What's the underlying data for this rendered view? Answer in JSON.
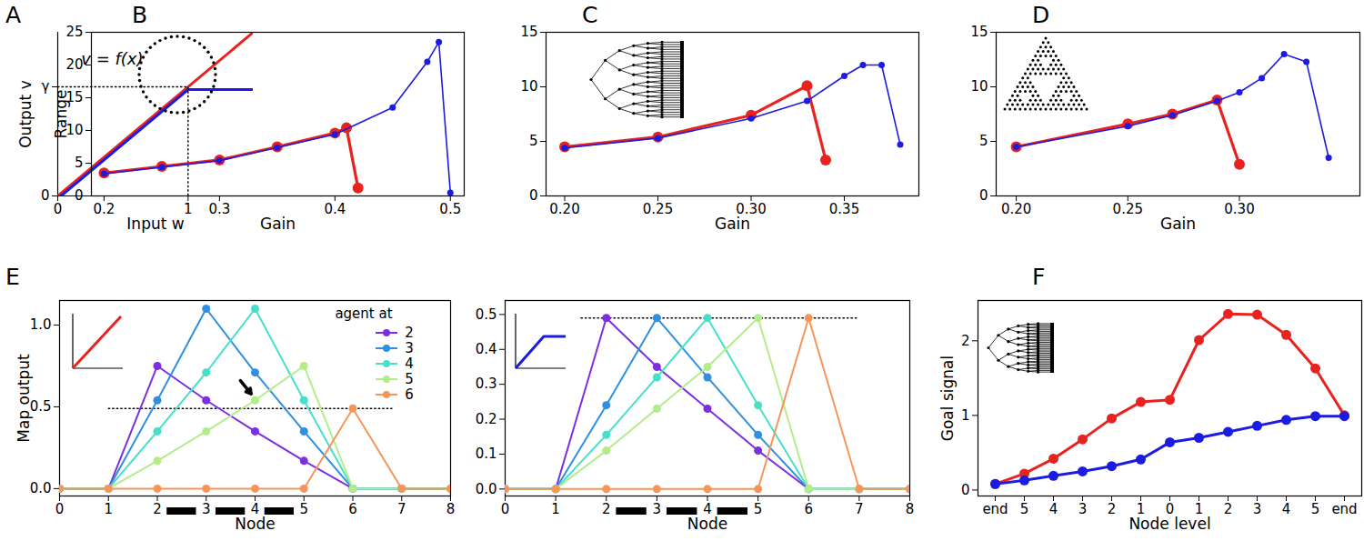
{
  "chart_data": [
    {
      "title": "A",
      "type": "line",
      "x_label": "Input w",
      "y_label": "Output v",
      "xlim": [
        0,
        1.5
      ],
      "ylim": [
        0,
        1.5
      ],
      "xticks": [
        0,
        1
      ],
      "yticks": [
        0,
        {
          "value": 1,
          "label": "γ"
        }
      ],
      "series": [
        {
          "color": "#e8231f",
          "line_style": "solid",
          "x": [
            0,
            1.5
          ],
          "values": [
            0,
            1.5
          ]
        },
        {
          "color": "#1c1ce0",
          "line_style": "solid",
          "x": [
            0,
            1,
            1.5
          ],
          "values": [
            0,
            1,
            1
          ]
        },
        {
          "color": "#000000",
          "line_style": "dotted",
          "x": [
            0,
            1,
            1
          ],
          "values": [
            1,
            1,
            0
          ]
        }
      ],
      "annotations": [
        {
          "text": "v = f(x)",
          "x": 0.18,
          "y": 1.25
        }
      ]
    },
    {
      "title": "B",
      "type": "line",
      "x_label": "Gain",
      "y_label": "Range",
      "xlim": [
        0.189,
        0.512
      ],
      "ylim": [
        0,
        25
      ],
      "xticks": [
        0.2,
        0.3,
        0.4,
        0.5
      ],
      "yticks": [
        0,
        5,
        10,
        15,
        20,
        25
      ],
      "series": [
        {
          "color": "#e8231f",
          "marker": "circle",
          "line_style": "solid",
          "x": [
            0.2,
            0.25,
            0.3,
            0.35,
            0.4,
            0.41,
            0.42
          ],
          "values": [
            3.5,
            4.5,
            5.5,
            7.5,
            9.6,
            10.4,
            1.2
          ]
        },
        {
          "color": "#1c1ce0",
          "marker": "circle",
          "line_style": "solid",
          "x": [
            0.2,
            0.25,
            0.3,
            0.35,
            0.4,
            0.45,
            0.48,
            0.49,
            0.5
          ],
          "values": [
            3.4,
            4.4,
            5.4,
            7.4,
            9.4,
            13.5,
            20.5,
            23.5,
            0.5
          ]
        }
      ]
    },
    {
      "title": "C",
      "type": "line",
      "x_label": "Gain",
      "xlim": [
        0.19,
        0.39
      ],
      "ylim": [
        0,
        15
      ],
      "xticks": [
        {
          "value": 0.2,
          "label": "0.20"
        },
        {
          "value": 0.25,
          "label": "0.25"
        },
        {
          "value": 0.3,
          "label": "0.30"
        },
        {
          "value": 0.35,
          "label": "0.35"
        }
      ],
      "yticks": [
        0,
        5,
        10,
        15
      ],
      "series": [
        {
          "color": "#e8231f",
          "marker": "circle",
          "line_style": "solid",
          "x": [
            0.2,
            0.25,
            0.3,
            0.33,
            0.34
          ],
          "values": [
            4.5,
            5.4,
            7.4,
            10.1,
            3.3
          ]
        },
        {
          "color": "#1c1ce0",
          "marker": "circle",
          "line_style": "solid",
          "x": [
            0.2,
            0.25,
            0.3,
            0.33,
            0.35,
            0.36,
            0.37,
            0.38
          ],
          "values": [
            4.4,
            5.3,
            7.1,
            8.7,
            11.0,
            12.0,
            12.0,
            4.7
          ]
        }
      ]
    },
    {
      "title": "D",
      "type": "line",
      "x_label": "Gain",
      "xlim": [
        0.191,
        0.354
      ],
      "ylim": [
        0,
        15
      ],
      "xticks": [
        {
          "value": 0.2,
          "label": "0.20"
        },
        {
          "value": 0.25,
          "label": "0.25"
        },
        {
          "value": 0.3,
          "label": "0.30"
        }
      ],
      "yticks": [
        0,
        5,
        10,
        15
      ],
      "series": [
        {
          "color": "#e8231f",
          "marker": "circle",
          "line_style": "solid",
          "x": [
            0.2,
            0.25,
            0.27,
            0.29,
            0.3
          ],
          "values": [
            4.5,
            6.6,
            7.5,
            8.8,
            2.9
          ]
        },
        {
          "color": "#1c1ce0",
          "marker": "circle",
          "line_style": "solid",
          "x": [
            0.2,
            0.25,
            0.27,
            0.29,
            0.3,
            0.31,
            0.32,
            0.33,
            0.34
          ],
          "values": [
            4.5,
            6.4,
            7.4,
            8.7,
            9.5,
            10.8,
            13.0,
            12.3,
            3.5
          ]
        }
      ]
    },
    {
      "title": "E",
      "type": "line",
      "x_label": "Node",
      "y_label": "Map output",
      "xlim": [
        0,
        8
      ],
      "ylim": [
        -0.045,
        1.15
      ],
      "xticks": [
        0,
        1,
        2,
        3,
        4,
        5,
        6,
        7,
        8
      ],
      "yticks": [
        {
          "value": 0,
          "label": "0.0"
        },
        0.5,
        {
          "value": 1,
          "label": "1.0"
        }
      ],
      "legend": "upper right",
      "legend_title": "agent at",
      "x": [
        0,
        1,
        2,
        3,
        4,
        5,
        6,
        7,
        8
      ],
      "series": [
        {
          "color": "#000000",
          "line_style": "dotted",
          "x": [
            1,
            6.8
          ],
          "values": [
            0.49,
            0.49
          ]
        },
        {
          "name": "2",
          "color": "#7b2fe0",
          "marker": "circle",
          "line_style": "solid",
          "values": [
            0,
            0,
            0.75,
            0.54,
            0.35,
            0.17,
            0,
            0,
            0
          ]
        },
        {
          "name": "3",
          "color": "#2f8fe0",
          "marker": "circle",
          "line_style": "solid",
          "values": [
            0,
            0,
            0.54,
            1.1,
            0.71,
            0.35,
            0,
            0,
            0
          ]
        },
        {
          "name": "4",
          "color": "#46e0c9",
          "marker": "circle",
          "line_style": "solid",
          "values": [
            0,
            0,
            0.35,
            0.71,
            1.1,
            0.54,
            0,
            0,
            0
          ]
        },
        {
          "name": "5",
          "color": "#b4ec8c",
          "marker": "circle",
          "line_style": "solid",
          "values": [
            0,
            0,
            0.17,
            0.35,
            0.54,
            0.75,
            0,
            0,
            0
          ]
        },
        {
          "name": "6",
          "color": "#f5955a",
          "marker": "circle",
          "line_style": "solid",
          "values": [
            0,
            0,
            0,
            0,
            0,
            0,
            0.49,
            0,
            0
          ]
        }
      ],
      "edges": [
        [
          2,
          3
        ],
        [
          3,
          4
        ],
        [
          4,
          5
        ]
      ],
      "arrow": {
        "x1": 3.7,
        "y1": 0.66,
        "x2": 3.92,
        "y2": 0.58
      }
    },
    {
      "type": "line",
      "x_label": "Node",
      "xlim": [
        0,
        8
      ],
      "ylim": [
        -0.02,
        0.54
      ],
      "xticks": [
        0,
        1,
        2,
        3,
        4,
        5,
        6,
        7,
        8
      ],
      "yticks": [
        {
          "value": 0,
          "label": "0.0"
        },
        0.1,
        0.2,
        0.3,
        0.4,
        0.5
      ],
      "x": [
        0,
        1,
        2,
        3,
        4,
        5,
        6,
        7,
        8
      ],
      "series": [
        {
          "color": "#000000",
          "line_style": "dotted",
          "x": [
            1.5,
            7
          ],
          "values": [
            0.49,
            0.49
          ]
        },
        {
          "color": "#7b2fe0",
          "marker": "circle",
          "line_style": "solid",
          "values": [
            0,
            0,
            0.49,
            0.35,
            0.23,
            0.11,
            0,
            0,
            0
          ]
        },
        {
          "color": "#2f8fe0",
          "marker": "circle",
          "line_style": "solid",
          "values": [
            0,
            0,
            0.24,
            0.49,
            0.32,
            0.155,
            0,
            0,
            0
          ]
        },
        {
          "color": "#46e0c9",
          "marker": "circle",
          "line_style": "solid",
          "values": [
            0,
            0,
            0.155,
            0.32,
            0.49,
            0.24,
            0,
            0,
            0
          ]
        },
        {
          "color": "#b4ec8c",
          "marker": "circle",
          "line_style": "solid",
          "values": [
            0,
            0,
            0.11,
            0.23,
            0.35,
            0.49,
            0,
            0,
            0
          ]
        },
        {
          "color": "#f5955a",
          "marker": "circle",
          "line_style": "solid",
          "values": [
            0,
            0,
            0,
            0,
            0,
            0,
            0.49,
            0,
            0
          ]
        }
      ],
      "edges": [
        [
          2,
          3
        ],
        [
          3,
          4
        ],
        [
          4,
          5
        ]
      ]
    },
    {
      "title": "F",
      "type": "line",
      "x_label": "Node level",
      "y_label": "Goal signal",
      "categories": [
        "end",
        "5",
        "4",
        "3",
        "2",
        "1",
        "0",
        "1",
        "2",
        "3",
        "4",
        "5",
        "end"
      ],
      "ylim": [
        -0.08,
        2.54
      ],
      "yticks": [
        0,
        1,
        2
      ],
      "series": [
        {
          "color": "#e8231f",
          "marker": "circle",
          "line_style": "solid",
          "values": [
            0.08,
            0.22,
            0.42,
            0.68,
            0.96,
            1.18,
            1.21,
            2.01,
            2.36,
            2.35,
            2.08,
            1.63,
            1.0
          ]
        },
        {
          "color": "#1c1ce0",
          "marker": "circle",
          "line_style": "solid",
          "values": [
            0.08,
            0.13,
            0.19,
            0.25,
            0.32,
            0.41,
            0.64,
            0.7,
            0.78,
            0.86,
            0.94,
            0.99,
            0.99
          ]
        }
      ]
    }
  ]
}
